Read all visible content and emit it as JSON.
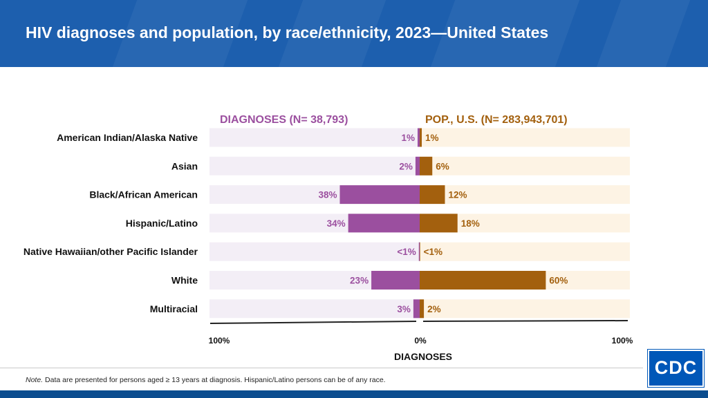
{
  "header": {
    "title": "HIV diagnoses and population, by race/ethnicity, 2023—United States"
  },
  "colors": {
    "header_bg": "#1d5fae",
    "diagnoses": "#9b4f9f",
    "population": "#a3600e",
    "diagnoses_track": "#f3eef6",
    "population_track": "#fdf3e4"
  },
  "chart_data": {
    "type": "bar",
    "orientation": "horizontal-diverging",
    "left_header": "DIAGNOSES (N= 38,793)",
    "right_header": "POP., U.S. (N= 283,943,701)",
    "xlabel": "DIAGNOSES",
    "ticks": [
      "100%",
      "0%",
      "100%"
    ],
    "xlim": [
      -100,
      100
    ],
    "categories": [
      "American Indian/Alaska Native",
      "Asian",
      "Black/African American",
      "Hispanic/Latino",
      "Native Hawaiian/other Pacific Islander",
      "White",
      "Multiracial"
    ],
    "series": [
      {
        "name": "DIAGNOSES (N= 38,793)",
        "values": [
          1,
          2,
          38,
          34,
          0.4,
          23,
          3
        ],
        "labels": [
          "1%",
          "2%",
          "38%",
          "34%",
          "<1%",
          "23%",
          "3%"
        ]
      },
      {
        "name": "POP., U.S. (N= 283,943,701)",
        "values": [
          1,
          6,
          12,
          18,
          0.2,
          60,
          2
        ],
        "labels": [
          "1%",
          "6%",
          "12%",
          "18%",
          "<1%",
          "60%",
          "2%"
        ]
      }
    ]
  },
  "footer": {
    "note_prefix": "Note.",
    "note_text": " Data are presented for persons aged ≥ 13 years at diagnosis. Hispanic/Latino persons can be of any race."
  },
  "logo": {
    "text": "CDC"
  }
}
